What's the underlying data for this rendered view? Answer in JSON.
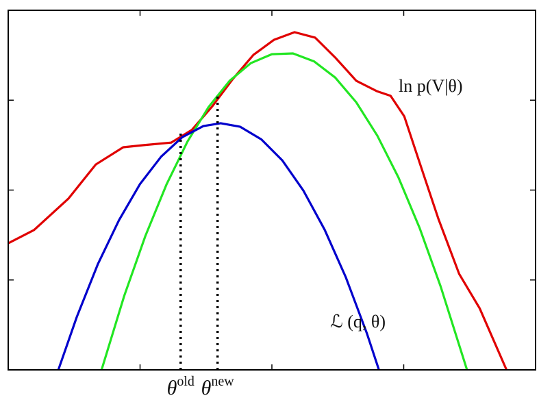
{
  "chart_data": {
    "type": "line",
    "xlim": [
      0,
      100
    ],
    "ylim": [
      0,
      100
    ],
    "xticks": [
      25,
      50,
      75
    ],
    "yticks": [
      25,
      50,
      75
    ],
    "series": [
      {
        "name": "ln p(V|θ)",
        "color": "#e00000",
        "x": [
          0,
          4.9,
          11.4,
          16.6,
          21.8,
          25.7,
          30.9,
          34.8,
          38.7,
          42.6,
          46.5,
          50.4,
          54.3,
          58.2,
          62.1,
          66.0,
          69.9,
          72.5,
          75.1,
          77.7,
          81.6,
          85.5,
          89.4,
          94.5
        ],
        "values": [
          35.2,
          38.9,
          47.6,
          57.1,
          61.9,
          62.5,
          63.2,
          66.7,
          73.3,
          80.9,
          87.6,
          91.8,
          93.9,
          92.4,
          86.7,
          80.4,
          77.5,
          76.2,
          70.5,
          59.0,
          41.9,
          26.7,
          17.1,
          0
        ]
      },
      {
        "color": "#22e622",
        "x": [
          17.7,
          22,
          26,
          30,
          34,
          38,
          42,
          46,
          50,
          54,
          58,
          62,
          66,
          70,
          74,
          78,
          82,
          87.0
        ],
        "values": [
          0,
          20.6,
          37.2,
          51.5,
          63.5,
          73.1,
          80.4,
          85.3,
          87.8,
          88.0,
          85.8,
          81.3,
          74.4,
          65.1,
          53.5,
          39.5,
          23.2,
          0
        ]
      },
      {
        "name": "ℒ (q, θ)",
        "color": "#0000cc",
        "x": [
          9.5,
          13,
          17,
          21,
          25,
          29,
          33,
          37,
          40.3,
          44,
          48,
          52,
          56,
          60,
          64,
          68,
          70.3
        ],
        "values": [
          0,
          14.7,
          29.4,
          41.6,
          51.7,
          59.3,
          64.7,
          67.8,
          68.6,
          67.6,
          64.1,
          58.2,
          49.8,
          39.0,
          25.8,
          10.2,
          0
        ]
      }
    ],
    "markers": [
      {
        "symbol": "θ",
        "superscript": "old",
        "x": 32.7,
        "y": 65.7
      },
      {
        "symbol": "θ",
        "superscript": "new",
        "x": 39.7,
        "y": 76.2
      }
    ]
  }
}
